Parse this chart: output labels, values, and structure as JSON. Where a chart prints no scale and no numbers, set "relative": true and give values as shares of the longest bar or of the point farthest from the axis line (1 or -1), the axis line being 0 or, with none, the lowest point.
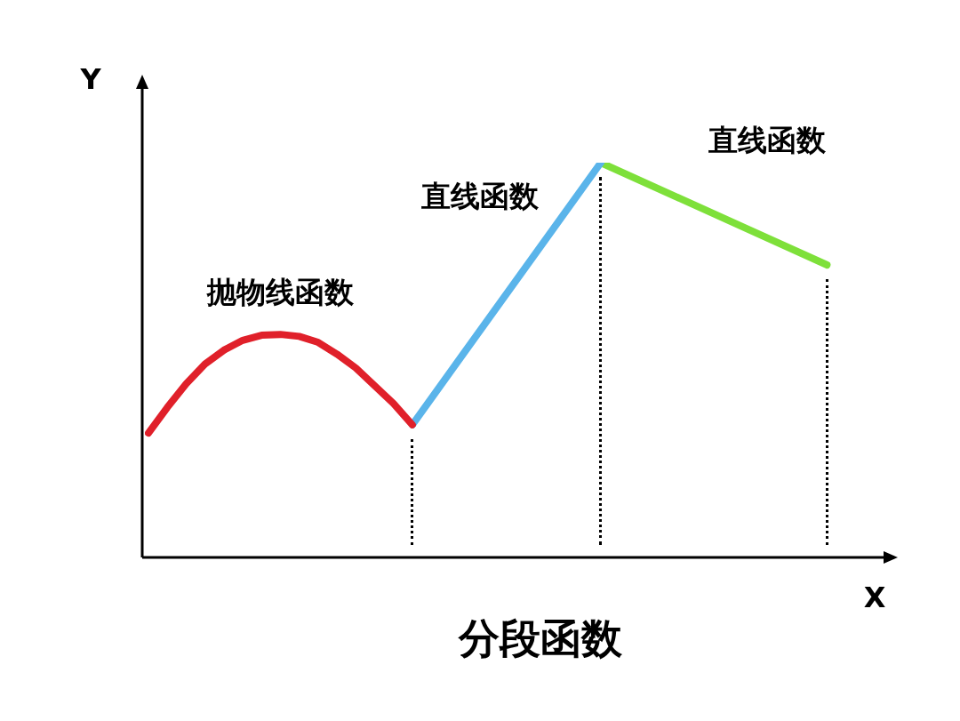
{
  "chart_data": {
    "type": "line",
    "title": "分段函数",
    "xlabel": "X",
    "ylabel": "Y",
    "relative": true,
    "categories": [
      null,
      null,
      null,
      null,
      null,
      null,
      null,
      null,
      null,
      null,
      null,
      null,
      null,
      null,
      null,
      null,
      null,
      null,
      null,
      null,
      null,
      null,
      null,
      null,
      null,
      null,
      null,
      null,
      null,
      null,
      null,
      null,
      null,
      null,
      null,
      null,
      null,
      null,
      null,
      null
    ],
    "series": [
      {
        "color": "#e0202a",
        "values": [
          0.315,
          0.38,
          0.44,
          0.49,
          0.525,
          0.55,
          0.563,
          0.565,
          0.56,
          0.545,
          0.515,
          0.48,
          0.435,
          0.39,
          0.336,
          null,
          null,
          null,
          null,
          null,
          null,
          null,
          null,
          null,
          null,
          null,
          null,
          null,
          null,
          null,
          null,
          null,
          null,
          null,
          null,
          null,
          null,
          null,
          null,
          null
        ]
      },
      {
        "color": "#5ab4ea",
        "values": [
          null,
          null,
          null,
          null,
          null,
          null,
          null,
          null,
          null,
          null,
          null,
          null,
          null,
          null,
          0.336,
          null,
          null,
          null,
          null,
          null,
          null,
          null,
          null,
          null,
          1.0,
          null,
          null,
          null,
          null,
          null,
          null,
          null,
          null,
          null,
          null,
          null,
          null,
          null,
          null,
          null
        ]
      },
      {
        "color": "#7ee03a",
        "values": [
          null,
          null,
          null,
          null,
          null,
          null,
          null,
          null,
          null,
          null,
          null,
          null,
          null,
          null,
          null,
          null,
          null,
          null,
          null,
          null,
          null,
          null,
          null,
          null,
          1.0,
          null,
          null,
          null,
          null,
          null,
          null,
          null,
          null,
          null,
          null,
          null,
          0.741,
          null,
          null,
          null
        ]
      }
    ],
    "annotations": [
      "抛物线函数",
      "直线函数",
      "直线函数"
    ],
    "legend": false,
    "marker": "none",
    "line_style": "solid"
  }
}
